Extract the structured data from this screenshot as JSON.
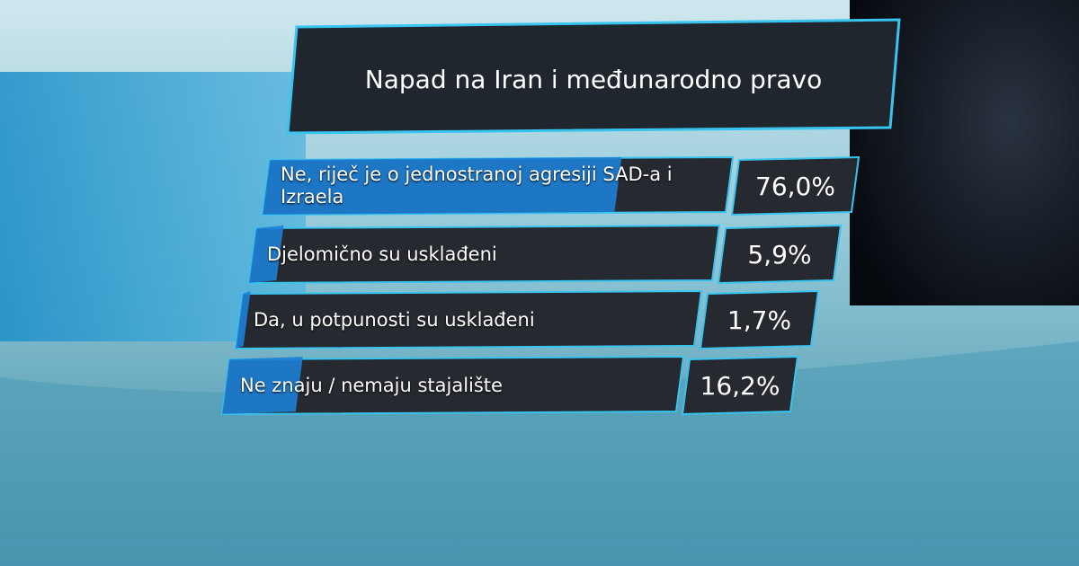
{
  "chart_data": {
    "type": "bar",
    "orientation": "horizontal",
    "title": "Napad na Iran i međunarodno pravo",
    "categories": [
      "Ne, riječ je o jednostranoj agresiji SAD-a i Izraela",
      "Djelomično su usklađeni",
      "Da, u potpunosti su usklađeni",
      "Ne znaju / nemaju stajalište"
    ],
    "values": [
      76.0,
      5.9,
      1.7,
      16.2
    ],
    "value_labels": [
      "76,0%",
      "5,9%",
      "1,7%",
      "16,2%"
    ],
    "color": "#1e7fd6"
  }
}
